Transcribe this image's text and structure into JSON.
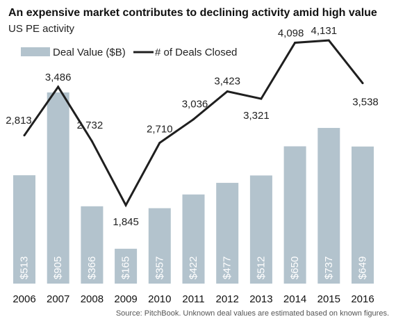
{
  "title": "An expensive market contributes to declining activity amid high value",
  "subtitle": "US PE activity",
  "source": "Source: PitchBook. Unknown deal values are estimated based on known figures.",
  "colors": {
    "bar": "#b3c3cd",
    "line": "#1f1f1f",
    "bar_text": "#ffffff"
  },
  "chart_data": {
    "type": "bar+line",
    "categories": [
      "2006",
      "2007",
      "2008",
      "2009",
      "2010",
      "2011",
      "2012",
      "2013",
      "2014",
      "2015",
      "2016"
    ],
    "legend_position": "top-left",
    "grid": false,
    "series": [
      {
        "name": "Deal Value ($B)",
        "type": "bar",
        "values": [
          513,
          905,
          366,
          165,
          357,
          422,
          477,
          512,
          650,
          737,
          649
        ],
        "labels": [
          "$513",
          "$905",
          "$366",
          "$165",
          "$357",
          "$422",
          "$477",
          "$512",
          "$650",
          "$737",
          "$649"
        ]
      },
      {
        "name": "# of Deals Closed",
        "type": "line",
        "values": [
          2813,
          3486,
          2732,
          1845,
          2710,
          3036,
          3423,
          3321,
          4098,
          4131,
          3538
        ],
        "labels": [
          "2,813",
          "3,486",
          "2,732",
          "1,845",
          "2,710",
          "3,036",
          "3,423",
          "3,321",
          "4,098",
          "4,131",
          "3,538"
        ]
      }
    ]
  }
}
